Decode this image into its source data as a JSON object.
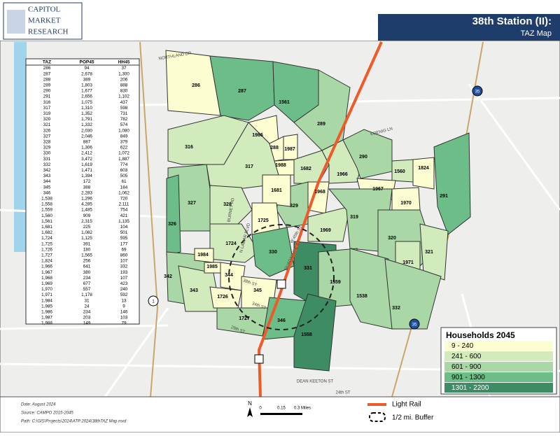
{
  "header": {
    "logo": [
      "CAPITOL",
      "MARKET",
      "RESEARCH"
    ],
    "title": "38th Station (II):",
    "subtitle": "TAZ Map"
  },
  "table": {
    "columns": [
      "TAZ",
      "POP45",
      "HH45"
    ],
    "rows": [
      [
        "286",
        "94",
        "37"
      ],
      [
        "287",
        "2,678",
        "1,300"
      ],
      [
        "288",
        "389",
        "206"
      ],
      [
        "289",
        "1,803",
        "888"
      ],
      [
        "290",
        "1,677",
        "830"
      ],
      [
        "291",
        "2,656",
        "1,102"
      ],
      [
        "316",
        "1,075",
        "437"
      ],
      [
        "317",
        "1,310",
        "598"
      ],
      [
        "319",
        "1,352",
        "731"
      ],
      [
        "320",
        "1,791",
        "782"
      ],
      [
        "321",
        "1,332",
        "574"
      ],
      [
        "326",
        "2,030",
        "1,080"
      ],
      [
        "327",
        "2,046",
        "849"
      ],
      [
        "328",
        "887",
        "379"
      ],
      [
        "329",
        "1,306",
        "622"
      ],
      [
        "330",
        "2,412",
        "1,072"
      ],
      [
        "331",
        "3,472",
        "1,887"
      ],
      [
        "332",
        "1,619",
        "774"
      ],
      [
        "342",
        "1,471",
        "603"
      ],
      [
        "343",
        "1,394",
        "505"
      ],
      [
        "344",
        "172",
        "61"
      ],
      [
        "345",
        "388",
        "184"
      ],
      [
        "346",
        "2,283",
        "1,062"
      ],
      [
        "1,538",
        "1,296",
        "720"
      ],
      [
        "1,558",
        "4,285",
        "2,111"
      ],
      [
        "1,559",
        "1,485",
        "754"
      ],
      [
        "1,560",
        "909",
        "421"
      ],
      [
        "1,561",
        "2,315",
        "1,135"
      ],
      [
        "1,681",
        "225",
        "104"
      ],
      [
        "1,682",
        "1,082",
        "501"
      ],
      [
        "1,724",
        "1,125",
        "595"
      ],
      [
        "1,725",
        "391",
        "177"
      ],
      [
        "1,726",
        "180",
        "69"
      ],
      [
        "1,727",
        "1,565",
        "860"
      ],
      [
        "1,824",
        "256",
        "107"
      ],
      [
        "1,966",
        "641",
        "332"
      ],
      [
        "1,967",
        "380",
        "193"
      ],
      [
        "1,968",
        "234",
        "107"
      ],
      [
        "1,969",
        "677",
        "423"
      ],
      [
        "1,970",
        "557",
        "240"
      ],
      [
        "1,971",
        "1,178",
        "592"
      ],
      [
        "1,984",
        "31",
        "13"
      ],
      [
        "1,985",
        "24",
        "9"
      ],
      [
        "1,986",
        "234",
        "146"
      ],
      [
        "1,987",
        "203",
        "103"
      ],
      [
        "1,988",
        "149",
        "79"
      ]
    ]
  },
  "map": {
    "zones": [
      "286",
      "287",
      "1561",
      "289",
      "316",
      "317",
      "1986",
      "288",
      "1987",
      "1988",
      "1682",
      "1966",
      "290",
      "1560",
      "1824",
      "291",
      "1967",
      "1970",
      "1968",
      "329",
      "1681",
      "327",
      "326",
      "328",
      "1725",
      "1724",
      "330",
      "1969",
      "319",
      "320",
      "321",
      "1971",
      "331",
      "1559",
      "1538",
      "332",
      "342",
      "343",
      "1984",
      "1985",
      "344",
      "1726",
      "345",
      "1727",
      "346",
      "1558"
    ],
    "streets": [
      "KOENIG LN",
      "W 45th ST",
      "GUADALUPE ST",
      "N LAMAR BLVD",
      "BURNET RD",
      "38th ST",
      "34th ST",
      "29th ST",
      "DEAN KEETON ST",
      "24th ST",
      "NORTHLAND DR"
    ],
    "shields": [
      "35",
      "35",
      "1"
    ]
  },
  "legend": {
    "title": "Households 2045",
    "classes": [
      "9 - 240",
      "241 - 600",
      "601 - 900",
      "901 - 1300",
      "1301 - 2200"
    ],
    "lines": [
      "Light Rail",
      "1/2 mi. Buffer"
    ]
  },
  "scale": {
    "north": "N",
    "labels": [
      "0",
      "0.15",
      "0.3 Miles"
    ]
  },
  "footer": [
    "Date: August 2024",
    "Source: CAMPO 2015-2045",
    "Path: C:\\GIS\\Projects\\2024\\ATP 2024\\38thTAZ Map.mxd"
  ]
}
